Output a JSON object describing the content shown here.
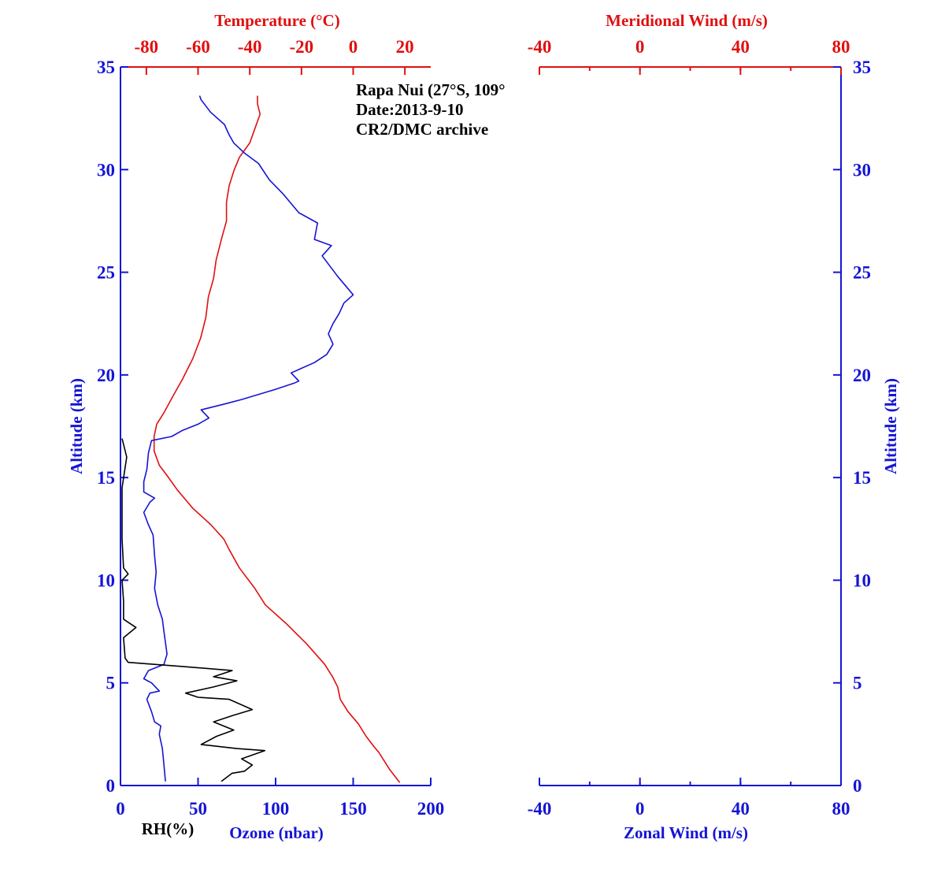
{
  "chart_data": [
    {
      "type": "line",
      "annotations": [
        "Rapa Nui (27°S, 109°",
        "Date:2013-9-10",
        "CR2/DMC archive"
      ],
      "ylabel": "Altitude (km)",
      "ylim": [
        0,
        35
      ],
      "yticks": [
        0,
        5,
        10,
        15,
        20,
        25,
        30,
        35
      ],
      "x_bottom": {
        "label": "Ozone (nbar)",
        "secondary_label": "RH(%)",
        "xlim": [
          0,
          200
        ],
        "ticks": [
          0,
          50,
          100,
          150,
          200
        ]
      },
      "x_top": {
        "label": "Temperature (°C)",
        "xlim": [
          -90,
          30
        ],
        "ticks": [
          -80,
          -60,
          -40,
          -20,
          0,
          20
        ]
      },
      "series": [
        {
          "name": "Temperature",
          "axis": "top",
          "color": "#e01010",
          "points": [
            [
              18,
              0.15
            ],
            [
              14,
              0.8
            ],
            [
              10,
              1.6
            ],
            [
              8,
              1.9
            ],
            [
              5,
              2.4
            ],
            [
              2,
              3.0
            ],
            [
              -2,
              3.6
            ],
            [
              -5,
              4.2
            ],
            [
              -6,
              4.8
            ],
            [
              -8,
              5.3
            ],
            [
              -11,
              5.9
            ],
            [
              -18,
              6.9
            ],
            [
              -26,
              7.9
            ],
            [
              -34,
              8.8
            ],
            [
              -38,
              9.6
            ],
            [
              -44,
              10.6
            ],
            [
              -48,
              11.5
            ],
            [
              -50,
              12.0
            ],
            [
              -55,
              12.7
            ],
            [
              -62,
              13.5
            ],
            [
              -68,
              14.4
            ],
            [
              -72,
              15.1
            ],
            [
              -75,
              15.6
            ],
            [
              -77,
              16.3
            ],
            [
              -77,
              17.0
            ],
            [
              -76,
              17.6
            ],
            [
              -73,
              18.2
            ],
            [
              -70,
              18.9
            ],
            [
              -66,
              19.8
            ],
            [
              -62,
              20.8
            ],
            [
              -59,
              21.8
            ],
            [
              -57,
              22.8
            ],
            [
              -56,
              23.8
            ],
            [
              -54,
              24.7
            ],
            [
              -53,
              25.6
            ],
            [
              -51,
              26.6
            ],
            [
              -49,
              27.5
            ],
            [
              -49,
              28.4
            ],
            [
              -48,
              29.2
            ],
            [
              -46,
              30.0
            ],
            [
              -44,
              30.6
            ],
            [
              -40,
              31.3
            ],
            [
              -38,
              32.0
            ],
            [
              -36,
              32.7
            ],
            [
              -37,
              33.2
            ],
            [
              -37,
              33.6
            ]
          ]
        },
        {
          "name": "Ozone",
          "axis": "bottom",
          "color": "#1414d6",
          "points": [
            [
              29,
              0.2
            ],
            [
              28,
              1.0
            ],
            [
              27,
              1.8
            ],
            [
              25,
              2.5
            ],
            [
              26,
              2.9
            ],
            [
              22,
              3.1
            ],
            [
              20,
              3.6
            ],
            [
              17,
              4.2
            ],
            [
              19,
              4.5
            ],
            [
              25,
              4.6
            ],
            [
              20,
              5.0
            ],
            [
              15,
              5.2
            ],
            [
              18,
              5.6
            ],
            [
              28,
              5.9
            ],
            [
              30,
              6.4
            ],
            [
              28,
              7.5
            ],
            [
              27,
              8.1
            ],
            [
              24,
              8.8
            ],
            [
              22,
              9.6
            ],
            [
              23,
              10.4
            ],
            [
              22,
              11.2
            ],
            [
              21,
              12.2
            ],
            [
              18,
              12.7
            ],
            [
              15,
              13.3
            ],
            [
              19,
              13.8
            ],
            [
              22,
              14.0
            ],
            [
              15,
              14.3
            ],
            [
              15,
              14.8
            ],
            [
              17,
              15.4
            ],
            [
              18,
              16.2
            ],
            [
              20,
              16.8
            ],
            [
              33,
              17.0
            ],
            [
              40,
              17.3
            ],
            [
              50,
              17.6
            ],
            [
              57,
              17.9
            ],
            [
              52,
              18.3
            ],
            [
              68,
              18.6
            ],
            [
              78,
              18.8
            ],
            [
              100,
              19.3
            ],
            [
              112,
              19.6
            ],
            [
              115,
              19.7
            ],
            [
              110,
              20.1
            ],
            [
              125,
              20.6
            ],
            [
              133,
              21.0
            ],
            [
              137,
              21.5
            ],
            [
              134,
              22.0
            ],
            [
              137,
              22.5
            ],
            [
              141,
              23.0
            ],
            [
              144,
              23.5
            ],
            [
              150,
              23.9
            ],
            [
              140,
              24.8
            ],
            [
              130,
              25.8
            ],
            [
              136,
              26.3
            ],
            [
              125,
              26.6
            ],
            [
              127,
              27.4
            ],
            [
              115,
              27.9
            ],
            [
              105,
              28.8
            ],
            [
              96,
              29.5
            ],
            [
              89,
              30.3
            ],
            [
              80,
              30.8
            ],
            [
              73,
              31.3
            ],
            [
              70,
              31.7
            ],
            [
              67,
              32.2
            ],
            [
              58,
              32.8
            ],
            [
              52,
              33.4
            ],
            [
              51,
              33.6
            ]
          ]
        },
        {
          "name": "RH",
          "axis": "bottom",
          "color": "#000000",
          "points": [
            [
              65,
              0.2
            ],
            [
              72,
              0.6
            ],
            [
              80,
              0.7
            ],
            [
              85,
              1.0
            ],
            [
              78,
              1.3
            ],
            [
              93,
              1.7
            ],
            [
              75,
              1.8
            ],
            [
              52,
              2.0
            ],
            [
              62,
              2.4
            ],
            [
              73,
              2.7
            ],
            [
              60,
              3.1
            ],
            [
              72,
              3.4
            ],
            [
              85,
              3.7
            ],
            [
              70,
              4.2
            ],
            [
              50,
              4.3
            ],
            [
              42,
              4.5
            ],
            [
              60,
              4.8
            ],
            [
              75,
              5.1
            ],
            [
              60,
              5.3
            ],
            [
              72,
              5.6
            ],
            [
              40,
              5.8
            ],
            [
              5,
              6.0
            ],
            [
              3,
              6.2
            ],
            [
              2,
              7.2
            ],
            [
              10,
              7.7
            ],
            [
              2,
              8.1
            ],
            [
              2,
              9.0
            ],
            [
              1,
              10.0
            ],
            [
              5,
              10.3
            ],
            [
              2,
              10.6
            ],
            [
              1,
              12.0
            ],
            [
              1,
              14.5
            ],
            [
              4,
              16.0
            ],
            [
              1,
              16.9
            ]
          ]
        }
      ]
    },
    {
      "type": "line",
      "ylabel": "Altitude (km)",
      "ylim": [
        0,
        35
      ],
      "yticks": [
        0,
        5,
        10,
        15,
        20,
        25,
        30,
        35
      ],
      "x_bottom": {
        "label": "Zonal Wind (m/s)",
        "xlim": [
          -40,
          80
        ],
        "ticks": [
          -40,
          0,
          40,
          80
        ]
      },
      "x_top": {
        "label": "Meridional Wind (m/s)",
        "xlim": [
          -40,
          80
        ],
        "ticks": [
          -40,
          0,
          40,
          80
        ]
      },
      "series": []
    }
  ]
}
